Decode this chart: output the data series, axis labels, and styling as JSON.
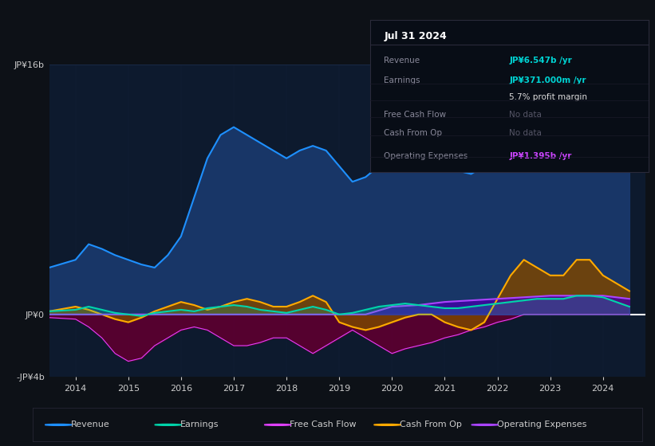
{
  "background_color": "#0d1117",
  "plot_bg_color": "#0d1a2e",
  "grid_color": "#1e3050",
  "ylim": [
    -4,
    16
  ],
  "xlim": [
    2013.5,
    2024.8
  ],
  "yticks_labels": [
    "JP¥16b",
    "JP¥0",
    "-JP¥4b"
  ],
  "yticks_values": [
    16,
    0,
    -4
  ],
  "xticks": [
    2014,
    2015,
    2016,
    2017,
    2018,
    2019,
    2020,
    2021,
    2022,
    2023,
    2024
  ],
  "legend": [
    {
      "label": "Revenue",
      "color": "#1e90ff"
    },
    {
      "label": "Earnings",
      "color": "#00d4aa"
    },
    {
      "label": "Free Cash Flow",
      "color": "#e040fb"
    },
    {
      "label": "Cash From Op",
      "color": "#ffaa00"
    },
    {
      "label": "Operating Expenses",
      "color": "#aa44ff"
    }
  ],
  "series": {
    "revenue": {
      "color": "#1e90ff",
      "fill_color": "#1a3a6e",
      "x": [
        2013.5,
        2014.0,
        2014.25,
        2014.5,
        2014.75,
        2015.0,
        2015.25,
        2015.5,
        2015.75,
        2016.0,
        2016.25,
        2016.5,
        2016.75,
        2017.0,
        2017.25,
        2017.5,
        2017.75,
        2018.0,
        2018.25,
        2018.5,
        2018.75,
        2019.0,
        2019.25,
        2019.5,
        2019.75,
        2020.0,
        2020.25,
        2020.5,
        2020.75,
        2021.0,
        2021.25,
        2021.5,
        2021.75,
        2022.0,
        2022.25,
        2022.5,
        2022.75,
        2023.0,
        2023.25,
        2023.5,
        2023.75,
        2024.0,
        2024.25,
        2024.5
      ],
      "y": [
        3.0,
        3.5,
        4.5,
        4.2,
        3.8,
        3.5,
        3.2,
        3.0,
        3.8,
        5.0,
        7.5,
        10.0,
        11.5,
        12.0,
        11.5,
        11.0,
        10.5,
        10.0,
        10.5,
        10.8,
        10.5,
        9.5,
        8.5,
        8.8,
        9.5,
        10.0,
        10.5,
        10.5,
        10.0,
        9.5,
        9.2,
        9.0,
        9.5,
        10.5,
        11.0,
        10.5,
        9.8,
        9.5,
        10.5,
        13.0,
        15.5,
        15.0,
        12.0,
        10.0
      ]
    },
    "earnings": {
      "color": "#00d4aa",
      "fill_color": "#00d4aa",
      "x": [
        2013.5,
        2014.0,
        2014.25,
        2014.5,
        2014.75,
        2015.0,
        2015.25,
        2015.5,
        2015.75,
        2016.0,
        2016.25,
        2016.5,
        2016.75,
        2017.0,
        2017.25,
        2017.5,
        2017.75,
        2018.0,
        2018.25,
        2018.5,
        2018.75,
        2019.0,
        2019.25,
        2019.5,
        2019.75,
        2020.0,
        2020.25,
        2020.5,
        2020.75,
        2021.0,
        2021.25,
        2021.5,
        2021.75,
        2022.0,
        2022.25,
        2022.5,
        2022.75,
        2023.0,
        2023.25,
        2023.5,
        2023.75,
        2024.0,
        2024.25,
        2024.5
      ],
      "y": [
        0.2,
        0.3,
        0.5,
        0.3,
        0.1,
        0.0,
        -0.1,
        0.1,
        0.2,
        0.3,
        0.2,
        0.4,
        0.5,
        0.6,
        0.5,
        0.3,
        0.2,
        0.1,
        0.3,
        0.5,
        0.3,
        0.0,
        0.1,
        0.3,
        0.5,
        0.6,
        0.7,
        0.6,
        0.5,
        0.4,
        0.4,
        0.5,
        0.6,
        0.7,
        0.8,
        0.9,
        1.0,
        1.0,
        1.0,
        1.2,
        1.2,
        1.1,
        0.8,
        0.5
      ]
    },
    "free_cash_flow": {
      "color": "#e040fb",
      "fill_color": "#5a0030",
      "x": [
        2013.5,
        2014.0,
        2014.25,
        2014.5,
        2014.75,
        2015.0,
        2015.25,
        2015.5,
        2015.75,
        2016.0,
        2016.25,
        2016.5,
        2016.75,
        2017.0,
        2017.25,
        2017.5,
        2017.75,
        2018.0,
        2018.25,
        2018.5,
        2018.75,
        2019.0,
        2019.25,
        2019.5,
        2019.75,
        2020.0,
        2020.25,
        2020.5,
        2020.75,
        2021.0,
        2021.25,
        2021.5,
        2021.75,
        2022.0,
        2022.25,
        2022.5,
        2022.75,
        2023.0,
        2023.5,
        2024.0,
        2024.5
      ],
      "y": [
        -0.2,
        -0.3,
        -0.8,
        -1.5,
        -2.5,
        -3.0,
        -2.8,
        -2.0,
        -1.5,
        -1.0,
        -0.8,
        -1.0,
        -1.5,
        -2.0,
        -2.0,
        -1.8,
        -1.5,
        -1.5,
        -2.0,
        -2.5,
        -2.0,
        -1.5,
        -1.0,
        -1.5,
        -2.0,
        -2.5,
        -2.2,
        -2.0,
        -1.8,
        -1.5,
        -1.3,
        -1.0,
        -0.8,
        -0.5,
        -0.3,
        0.0,
        0.0,
        0.0,
        0.0,
        0.0,
        0.0
      ]
    },
    "cash_from_op": {
      "color": "#ffaa00",
      "fill_color": "#7a4500",
      "x": [
        2013.5,
        2014.0,
        2014.25,
        2014.5,
        2014.75,
        2015.0,
        2015.25,
        2015.5,
        2015.75,
        2016.0,
        2016.25,
        2016.5,
        2016.75,
        2017.0,
        2017.25,
        2017.5,
        2017.75,
        2018.0,
        2018.25,
        2018.5,
        2018.75,
        2019.0,
        2019.25,
        2019.5,
        2019.75,
        2020.0,
        2020.25,
        2020.5,
        2020.75,
        2021.0,
        2021.25,
        2021.5,
        2021.75,
        2022.0,
        2022.25,
        2022.5,
        2022.75,
        2023.0,
        2023.25,
        2023.5,
        2023.75,
        2024.0,
        2024.25,
        2024.5
      ],
      "y": [
        0.2,
        0.5,
        0.3,
        0.0,
        -0.3,
        -0.5,
        -0.2,
        0.2,
        0.5,
        0.8,
        0.6,
        0.3,
        0.5,
        0.8,
        1.0,
        0.8,
        0.5,
        0.5,
        0.8,
        1.2,
        0.8,
        -0.5,
        -0.8,
        -1.0,
        -0.8,
        -0.5,
        -0.2,
        0.0,
        0.0,
        -0.5,
        -0.8,
        -1.0,
        -0.5,
        1.0,
        2.5,
        3.5,
        3.0,
        2.5,
        2.5,
        3.5,
        3.5,
        2.5,
        2.0,
        1.5
      ]
    },
    "operating_expenses": {
      "color": "#aa44ff",
      "fill_color": "#4400aa",
      "x": [
        2013.5,
        2014.0,
        2015.0,
        2016.0,
        2017.0,
        2018.0,
        2019.0,
        2019.5,
        2020.0,
        2020.5,
        2021.0,
        2021.5,
        2022.0,
        2022.5,
        2023.0,
        2023.5,
        2024.0,
        2024.5
      ],
      "y": [
        0.0,
        0.0,
        0.0,
        0.0,
        0.0,
        0.0,
        0.0,
        0.0,
        0.5,
        0.6,
        0.8,
        0.9,
        1.0,
        1.1,
        1.2,
        1.2,
        1.2,
        1.0
      ]
    }
  },
  "infobox": {
    "date": "Jul 31 2024",
    "rows": [
      {
        "label": "Revenue",
        "value": "JP¥6.547b /yr",
        "value_color": "#00d4d4",
        "bold": true
      },
      {
        "label": "Earnings",
        "value": "JP¥371.000m /yr",
        "value_color": "#00d4d4",
        "bold": true
      },
      {
        "label": "",
        "value": "5.7% profit margin",
        "value_color": "#dddddd",
        "bold": false
      },
      {
        "label": "Free Cash Flow",
        "value": "No data",
        "value_color": "#555566",
        "bold": false
      },
      {
        "label": "Cash From Op",
        "value": "No data",
        "value_color": "#555566",
        "bold": false
      },
      {
        "label": "Operating Expenses",
        "value": "JP¥1.395b /yr",
        "value_color": "#cc44ff",
        "bold": true
      }
    ]
  }
}
